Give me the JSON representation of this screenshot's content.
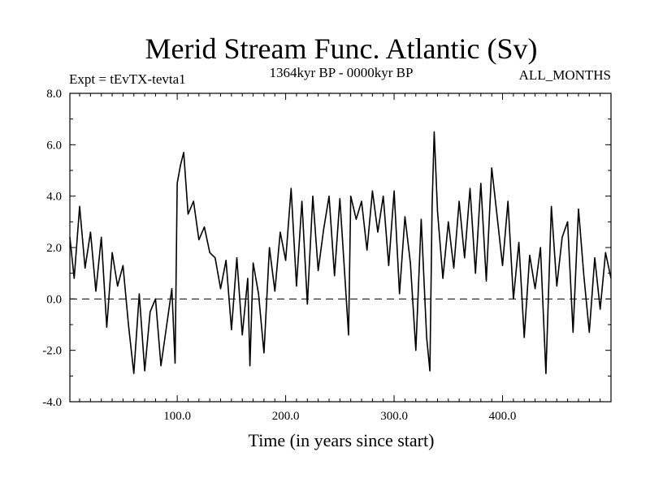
{
  "chart_data": {
    "type": "line",
    "title": "Merid Stream Func. Atlantic (Sv)",
    "subtitle_left": "Expt = tEvTX-tevta1",
    "subtitle_center": "1364kyr BP - 0000kyr BP",
    "subtitle_right": "ALL_MONTHS",
    "xlabel": "Time (in years since start)",
    "ylabel": "",
    "xlim": [
      1,
      500
    ],
    "ylim": [
      -4,
      8
    ],
    "x_ticks": [
      100,
      200,
      300,
      400
    ],
    "x_tick_labels": [
      "100.0",
      "200.0",
      "300.0",
      "400.0"
    ],
    "y_ticks": [
      -4,
      -2,
      0,
      2,
      4,
      6,
      8
    ],
    "y_tick_labels": [
      "-4.0",
      "-2.0",
      "0.0",
      "2.0",
      "4.0",
      "6.0",
      "8.0"
    ],
    "zero_line": 0,
    "series": [
      {
        "name": "Merid Stream Func. Atlantic",
        "x": [
          1,
          5,
          10,
          15,
          20,
          25,
          30,
          35,
          40,
          45,
          50,
          55,
          60,
          65,
          70,
          75,
          80,
          85,
          90,
          95,
          98,
          100,
          103,
          106,
          110,
          115,
          120,
          125,
          130,
          135,
          140,
          145,
          150,
          155,
          160,
          165,
          167,
          170,
          175,
          180,
          185,
          190,
          195,
          200,
          205,
          210,
          215,
          220,
          225,
          230,
          235,
          240,
          245,
          250,
          255,
          258,
          260,
          265,
          270,
          275,
          280,
          285,
          290,
          295,
          300,
          305,
          310,
          315,
          320,
          325,
          330,
          333,
          335,
          337,
          340,
          345,
          350,
          355,
          360,
          365,
          370,
          375,
          380,
          385,
          390,
          395,
          400,
          405,
          410,
          415,
          420,
          425,
          430,
          435,
          440,
          445,
          450,
          455,
          460,
          465,
          470,
          475,
          480,
          485,
          490,
          495,
          500
        ],
        "values": [
          2.4,
          0.8,
          3.6,
          1.2,
          2.6,
          0.3,
          2.4,
          -1.1,
          1.8,
          0.5,
          1.3,
          -1.0,
          -2.9,
          0.2,
          -2.8,
          -0.5,
          0.0,
          -2.6,
          -1.1,
          0.4,
          -2.5,
          4.5,
          5.2,
          5.7,
          3.3,
          3.8,
          2.3,
          2.8,
          1.8,
          1.6,
          0.4,
          1.5,
          -1.2,
          1.6,
          -1.4,
          0.8,
          -2.6,
          1.4,
          0.2,
          -2.1,
          2.0,
          0.3,
          2.6,
          1.5,
          4.3,
          0.5,
          3.8,
          -0.2,
          4.0,
          1.1,
          2.7,
          4.0,
          0.9,
          3.9,
          0.6,
          -1.4,
          4.0,
          3.1,
          3.8,
          1.9,
          4.2,
          2.6,
          4.0,
          1.3,
          4.2,
          0.2,
          3.2,
          1.4,
          -2.0,
          3.1,
          -1.5,
          -2.8,
          3.6,
          6.5,
          3.4,
          0.8,
          3.0,
          1.2,
          3.8,
          1.6,
          4.3,
          1.0,
          4.5,
          0.7,
          5.1,
          3.2,
          1.3,
          3.8,
          0.0,
          2.2,
          -1.5,
          1.7,
          0.4,
          2.0,
          -2.9,
          3.6,
          0.5,
          2.4,
          3.0,
          -1.3,
          3.5,
          0.9,
          -1.3,
          1.6,
          -0.4,
          1.8,
          0.8
        ]
      }
    ]
  }
}
